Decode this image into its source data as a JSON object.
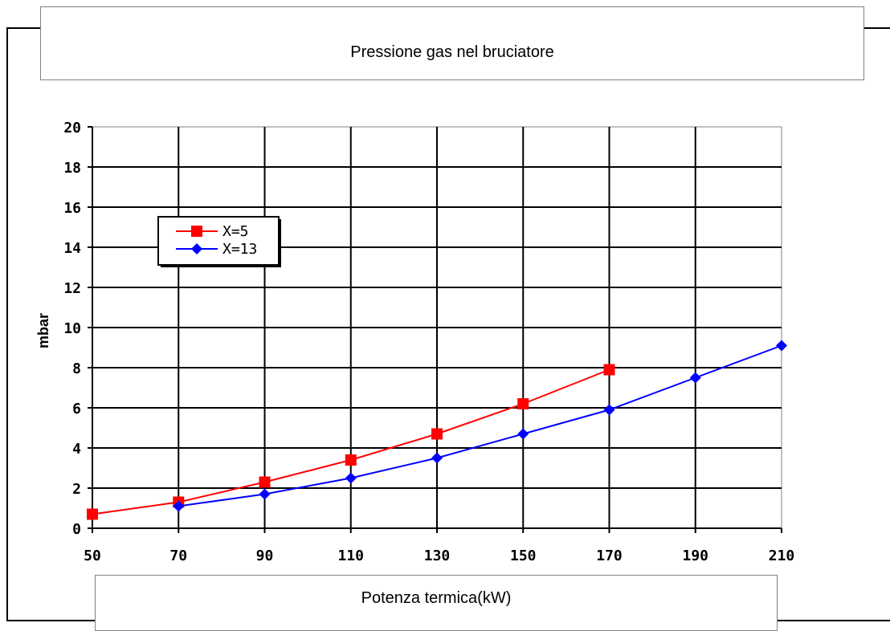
{
  "chart_data": {
    "type": "line",
    "title": "Pressione gas nel bruciatore",
    "xlabel": "Potenza termica(kW)",
    "ylabel": "mbar",
    "xlim": [
      50,
      210
    ],
    "ylim": [
      0,
      20
    ],
    "x_ticks": [
      50,
      70,
      90,
      110,
      130,
      150,
      170,
      190,
      210
    ],
    "y_ticks": [
      0,
      2,
      4,
      6,
      8,
      10,
      12,
      14,
      16,
      18,
      20
    ],
    "x_tick_labels": [
      "50",
      "70",
      "90",
      "110",
      "130",
      "150",
      "170",
      "190",
      "210"
    ],
    "y_tick_labels": [
      "0",
      "2",
      "4",
      "6",
      "8",
      "10",
      "12",
      "14",
      "16",
      "18",
      "20"
    ],
    "grid": true,
    "legend_position": "top-left",
    "series": [
      {
        "name": "X=5",
        "color": "#ff0000",
        "marker": "square",
        "x": [
          50,
          70,
          90,
          110,
          130,
          150,
          170
        ],
        "y": [
          0.7,
          1.3,
          2.3,
          3.4,
          4.7,
          6.2,
          7.9
        ]
      },
      {
        "name": "X=13",
        "color": "#0000ff",
        "marker": "diamond",
        "x": [
          70,
          90,
          110,
          130,
          150,
          170,
          190,
          210
        ],
        "y": [
          1.1,
          1.7,
          2.5,
          3.5,
          4.7,
          5.9,
          7.5,
          9.1
        ]
      }
    ]
  }
}
